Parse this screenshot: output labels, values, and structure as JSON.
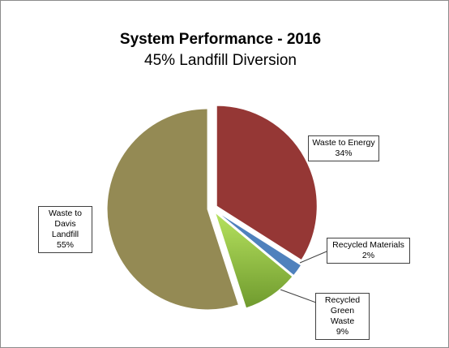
{
  "chart_data": {
    "type": "pie",
    "title": "System Performance - 2016",
    "subtitle": "45% Landfill Diversion",
    "categories": [
      "Waste to Energy",
      "Recycled Materials",
      "Recycled Green Waste",
      "Waste to Davis Landfill"
    ],
    "values": [
      34,
      2,
      9,
      55
    ],
    "value_labels": [
      "34%",
      "2%",
      "9%",
      "55%"
    ],
    "colors": [
      "#953735",
      "#4f81bd",
      "#8fb644",
      "#948a54"
    ]
  }
}
